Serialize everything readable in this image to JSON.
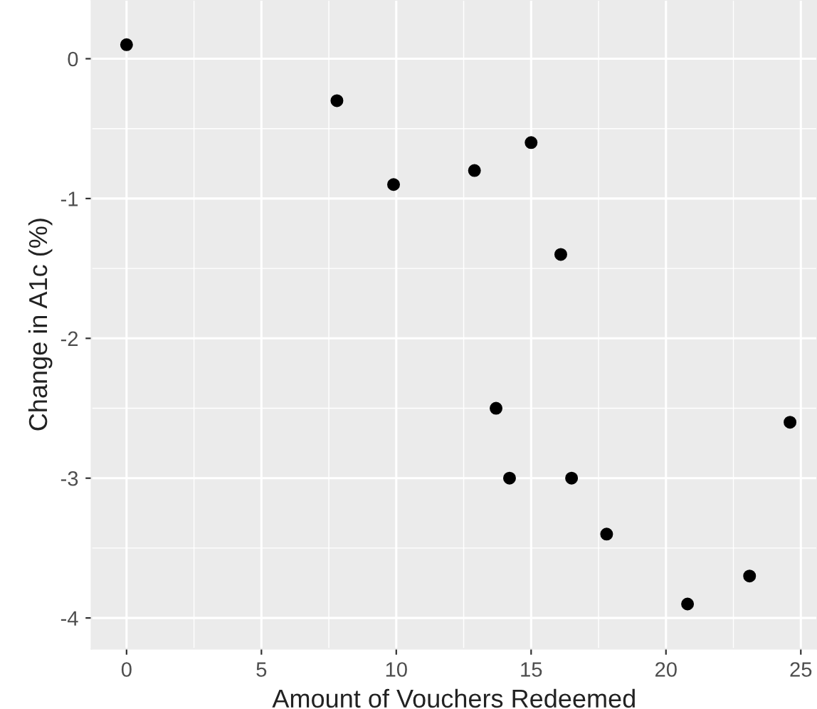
{
  "chart_data": {
    "type": "scatter",
    "xlabel": "Amount of Vouchers Redeemed",
    "ylabel": "Change in A1c (%)",
    "x": [
      0,
      7.8,
      9.9,
      12.9,
      15.0,
      16.1,
      13.7,
      14.2,
      16.5,
      17.8,
      20.8,
      23.1,
      24.6
    ],
    "series": [
      {
        "color": "#000000",
        "values": [
          0.1,
          -0.3,
          -0.9,
          -0.8,
          -0.6,
          -1.4,
          -2.5,
          -3.0,
          -3.0,
          -3.4,
          -3.9,
          -3.7,
          -2.6
        ]
      }
    ],
    "xlim": [
      -1.3,
      25.6
    ],
    "ylim": [
      -4.22,
      0.42
    ],
    "xticks": [
      0,
      5,
      10,
      15,
      20,
      25
    ],
    "yticks": [
      {
        "value": 0,
        "label": "0"
      },
      {
        "value": -1,
        "label": "-1"
      },
      {
        "value": -2,
        "label": "-2"
      },
      {
        "value": -3,
        "label": "-3"
      },
      {
        "value": -4,
        "label": "-4"
      }
    ],
    "grid": true,
    "marker": "circle",
    "legend": false
  }
}
